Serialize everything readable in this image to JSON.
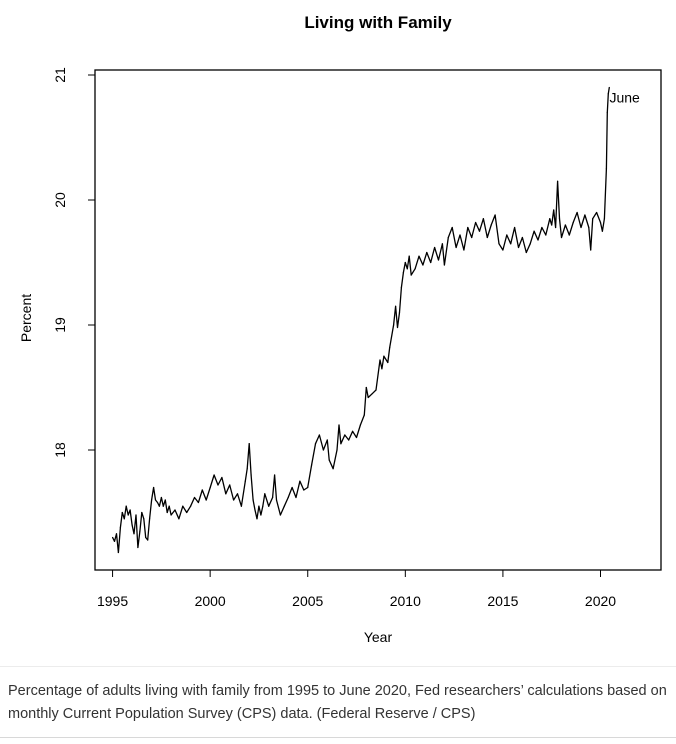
{
  "chart_data": {
    "type": "line",
    "title": "Living with Family",
    "xlabel": "Year",
    "ylabel": "Percent",
    "xlim": [
      1994.1,
      2023.1
    ],
    "ylim": [
      17.04,
      21.04
    ],
    "x_ticks": [
      1995,
      2000,
      2005,
      2010,
      2015,
      2020
    ],
    "x_tick_labels": [
      "1995",
      "2000",
      "2005",
      "2010",
      "2015",
      "2020"
    ],
    "y_ticks": [
      18,
      19,
      20,
      21
    ],
    "y_tick_labels": [
      "18",
      "19",
      "20",
      "21"
    ],
    "grid": false,
    "legend": "none",
    "annotations": [
      {
        "text": "June",
        "x": 2020.46,
        "y": 20.78
      }
    ],
    "series": [
      {
        "name": "Percentage of adults living with family",
        "points": [
          [
            1995.0,
            17.3
          ],
          [
            1995.1,
            17.27
          ],
          [
            1995.2,
            17.33
          ],
          [
            1995.3,
            17.18
          ],
          [
            1995.4,
            17.38
          ],
          [
            1995.5,
            17.5
          ],
          [
            1995.6,
            17.45
          ],
          [
            1995.7,
            17.55
          ],
          [
            1995.8,
            17.48
          ],
          [
            1995.9,
            17.52
          ],
          [
            1996.0,
            17.4
          ],
          [
            1996.1,
            17.33
          ],
          [
            1996.2,
            17.48
          ],
          [
            1996.3,
            17.22
          ],
          [
            1996.4,
            17.35
          ],
          [
            1996.5,
            17.5
          ],
          [
            1996.6,
            17.45
          ],
          [
            1996.7,
            17.3
          ],
          [
            1996.8,
            17.28
          ],
          [
            1996.9,
            17.45
          ],
          [
            1997.0,
            17.6
          ],
          [
            1997.1,
            17.7
          ],
          [
            1997.2,
            17.6
          ],
          [
            1997.3,
            17.58
          ],
          [
            1997.4,
            17.55
          ],
          [
            1997.5,
            17.62
          ],
          [
            1997.6,
            17.55
          ],
          [
            1997.7,
            17.6
          ],
          [
            1997.8,
            17.5
          ],
          [
            1997.9,
            17.55
          ],
          [
            1998.0,
            17.48
          ],
          [
            1998.2,
            17.52
          ],
          [
            1998.4,
            17.45
          ],
          [
            1998.6,
            17.55
          ],
          [
            1998.8,
            17.5
          ],
          [
            1999.0,
            17.55
          ],
          [
            1999.2,
            17.62
          ],
          [
            1999.4,
            17.58
          ],
          [
            1999.6,
            17.68
          ],
          [
            1999.8,
            17.6
          ],
          [
            2000.0,
            17.7
          ],
          [
            2000.2,
            17.8
          ],
          [
            2000.4,
            17.72
          ],
          [
            2000.6,
            17.78
          ],
          [
            2000.8,
            17.65
          ],
          [
            2001.0,
            17.72
          ],
          [
            2001.2,
            17.6
          ],
          [
            2001.4,
            17.65
          ],
          [
            2001.6,
            17.55
          ],
          [
            2001.8,
            17.75
          ],
          [
            2001.9,
            17.85
          ],
          [
            2002.0,
            18.05
          ],
          [
            2002.1,
            17.8
          ],
          [
            2002.2,
            17.6
          ],
          [
            2002.3,
            17.52
          ],
          [
            2002.4,
            17.45
          ],
          [
            2002.5,
            17.55
          ],
          [
            2002.6,
            17.48
          ],
          [
            2002.7,
            17.55
          ],
          [
            2002.8,
            17.65
          ],
          [
            2003.0,
            17.55
          ],
          [
            2003.2,
            17.62
          ],
          [
            2003.3,
            17.8
          ],
          [
            2003.4,
            17.6
          ],
          [
            2003.6,
            17.48
          ],
          [
            2003.8,
            17.55
          ],
          [
            2004.0,
            17.62
          ],
          [
            2004.2,
            17.7
          ],
          [
            2004.4,
            17.62
          ],
          [
            2004.6,
            17.75
          ],
          [
            2004.8,
            17.68
          ],
          [
            2005.0,
            17.7
          ],
          [
            2005.2,
            17.88
          ],
          [
            2005.4,
            18.05
          ],
          [
            2005.6,
            18.12
          ],
          [
            2005.8,
            18.0
          ],
          [
            2006.0,
            18.08
          ],
          [
            2006.1,
            17.92
          ],
          [
            2006.3,
            17.85
          ],
          [
            2006.5,
            18.0
          ],
          [
            2006.6,
            18.2
          ],
          [
            2006.7,
            18.05
          ],
          [
            2006.9,
            18.12
          ],
          [
            2007.1,
            18.08
          ],
          [
            2007.3,
            18.15
          ],
          [
            2007.5,
            18.1
          ],
          [
            2007.7,
            18.2
          ],
          [
            2007.9,
            18.28
          ],
          [
            2008.0,
            18.5
          ],
          [
            2008.1,
            18.42
          ],
          [
            2008.3,
            18.45
          ],
          [
            2008.5,
            18.48
          ],
          [
            2008.7,
            18.72
          ],
          [
            2008.8,
            18.65
          ],
          [
            2008.9,
            18.75
          ],
          [
            2009.1,
            18.7
          ],
          [
            2009.2,
            18.82
          ],
          [
            2009.4,
            19.0
          ],
          [
            2009.5,
            19.15
          ],
          [
            2009.6,
            18.98
          ],
          [
            2009.7,
            19.1
          ],
          [
            2009.8,
            19.3
          ],
          [
            2009.9,
            19.42
          ],
          [
            2010.0,
            19.5
          ],
          [
            2010.1,
            19.45
          ],
          [
            2010.2,
            19.55
          ],
          [
            2010.3,
            19.4
          ],
          [
            2010.5,
            19.45
          ],
          [
            2010.7,
            19.55
          ],
          [
            2010.9,
            19.48
          ],
          [
            2011.1,
            19.58
          ],
          [
            2011.3,
            19.5
          ],
          [
            2011.5,
            19.62
          ],
          [
            2011.7,
            19.52
          ],
          [
            2011.9,
            19.65
          ],
          [
            2012.0,
            19.48
          ],
          [
            2012.2,
            19.7
          ],
          [
            2012.4,
            19.78
          ],
          [
            2012.6,
            19.62
          ],
          [
            2012.8,
            19.72
          ],
          [
            2013.0,
            19.6
          ],
          [
            2013.2,
            19.78
          ],
          [
            2013.4,
            19.7
          ],
          [
            2013.6,
            19.82
          ],
          [
            2013.8,
            19.75
          ],
          [
            2014.0,
            19.85
          ],
          [
            2014.2,
            19.7
          ],
          [
            2014.4,
            19.8
          ],
          [
            2014.6,
            19.88
          ],
          [
            2014.8,
            19.65
          ],
          [
            2015.0,
            19.6
          ],
          [
            2015.2,
            19.72
          ],
          [
            2015.4,
            19.65
          ],
          [
            2015.6,
            19.78
          ],
          [
            2015.8,
            19.62
          ],
          [
            2016.0,
            19.7
          ],
          [
            2016.2,
            19.58
          ],
          [
            2016.4,
            19.65
          ],
          [
            2016.6,
            19.75
          ],
          [
            2016.8,
            19.68
          ],
          [
            2017.0,
            19.78
          ],
          [
            2017.2,
            19.72
          ],
          [
            2017.4,
            19.85
          ],
          [
            2017.5,
            19.8
          ],
          [
            2017.6,
            19.92
          ],
          [
            2017.7,
            19.78
          ],
          [
            2017.8,
            20.15
          ],
          [
            2017.9,
            19.85
          ],
          [
            2018.0,
            19.7
          ],
          [
            2018.2,
            19.8
          ],
          [
            2018.4,
            19.72
          ],
          [
            2018.6,
            19.82
          ],
          [
            2018.8,
            19.9
          ],
          [
            2019.0,
            19.78
          ],
          [
            2019.2,
            19.88
          ],
          [
            2019.4,
            19.78
          ],
          [
            2019.5,
            19.6
          ],
          [
            2019.6,
            19.85
          ],
          [
            2019.8,
            19.9
          ],
          [
            2020.0,
            19.82
          ],
          [
            2020.1,
            19.75
          ],
          [
            2020.2,
            19.85
          ],
          [
            2020.3,
            20.25
          ],
          [
            2020.35,
            20.7
          ],
          [
            2020.4,
            20.85
          ],
          [
            2020.45,
            20.9
          ]
        ]
      }
    ]
  },
  "caption": "Percentage of adults living with family from 1995 to June 2020, Fed researchers’ calculations based on monthly Current Population Survey (CPS) data. (Federal Reserve / CPS)"
}
